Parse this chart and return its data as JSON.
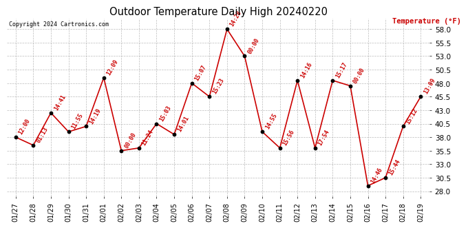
{
  "title": "Outdoor Temperature Daily High 20240220",
  "copyright": "Copyright 2024 Cartronics.com",
  "ylabel": "Temperature (°F)",
  "dates": [
    "01/27",
    "01/28",
    "01/29",
    "01/30",
    "01/31",
    "02/01",
    "02/02",
    "02/03",
    "02/04",
    "02/05",
    "02/06",
    "02/07",
    "02/08",
    "02/09",
    "02/10",
    "02/11",
    "02/12",
    "02/13",
    "02/14",
    "02/15",
    "02/16",
    "02/17",
    "02/18",
    "02/19"
  ],
  "temps": [
    38.0,
    36.5,
    42.5,
    39.0,
    40.0,
    49.0,
    35.5,
    36.0,
    40.5,
    38.5,
    48.0,
    45.5,
    58.0,
    53.0,
    39.0,
    36.0,
    48.5,
    36.0,
    48.5,
    47.5,
    29.0,
    30.5,
    40.0,
    45.5
  ],
  "times": [
    "12:00",
    "01:13",
    "14:41",
    "11:55",
    "14:19",
    "12:09",
    "00:00",
    "11:24",
    "15:03",
    "14:01",
    "15:07",
    "15:23",
    "14:28",
    "00:00",
    "14:55",
    "15:56",
    "14:16",
    "17:54",
    "15:17",
    "00:00",
    "14:46",
    "15:44",
    "15:12",
    "13:09"
  ],
  "ylim": [
    27.0,
    60.0
  ],
  "yticks": [
    28.0,
    30.5,
    33.0,
    35.5,
    38.0,
    40.5,
    43.0,
    45.5,
    48.0,
    50.5,
    53.0,
    55.5,
    58.0
  ],
  "line_color": "#cc0000",
  "dot_color": "#000000",
  "label_color": "#cc0000",
  "title_color": "#000000",
  "copyright_color": "#000000",
  "ylabel_color": "#cc0000",
  "bg_color": "#ffffff",
  "grid_color": "#aaaaaa"
}
